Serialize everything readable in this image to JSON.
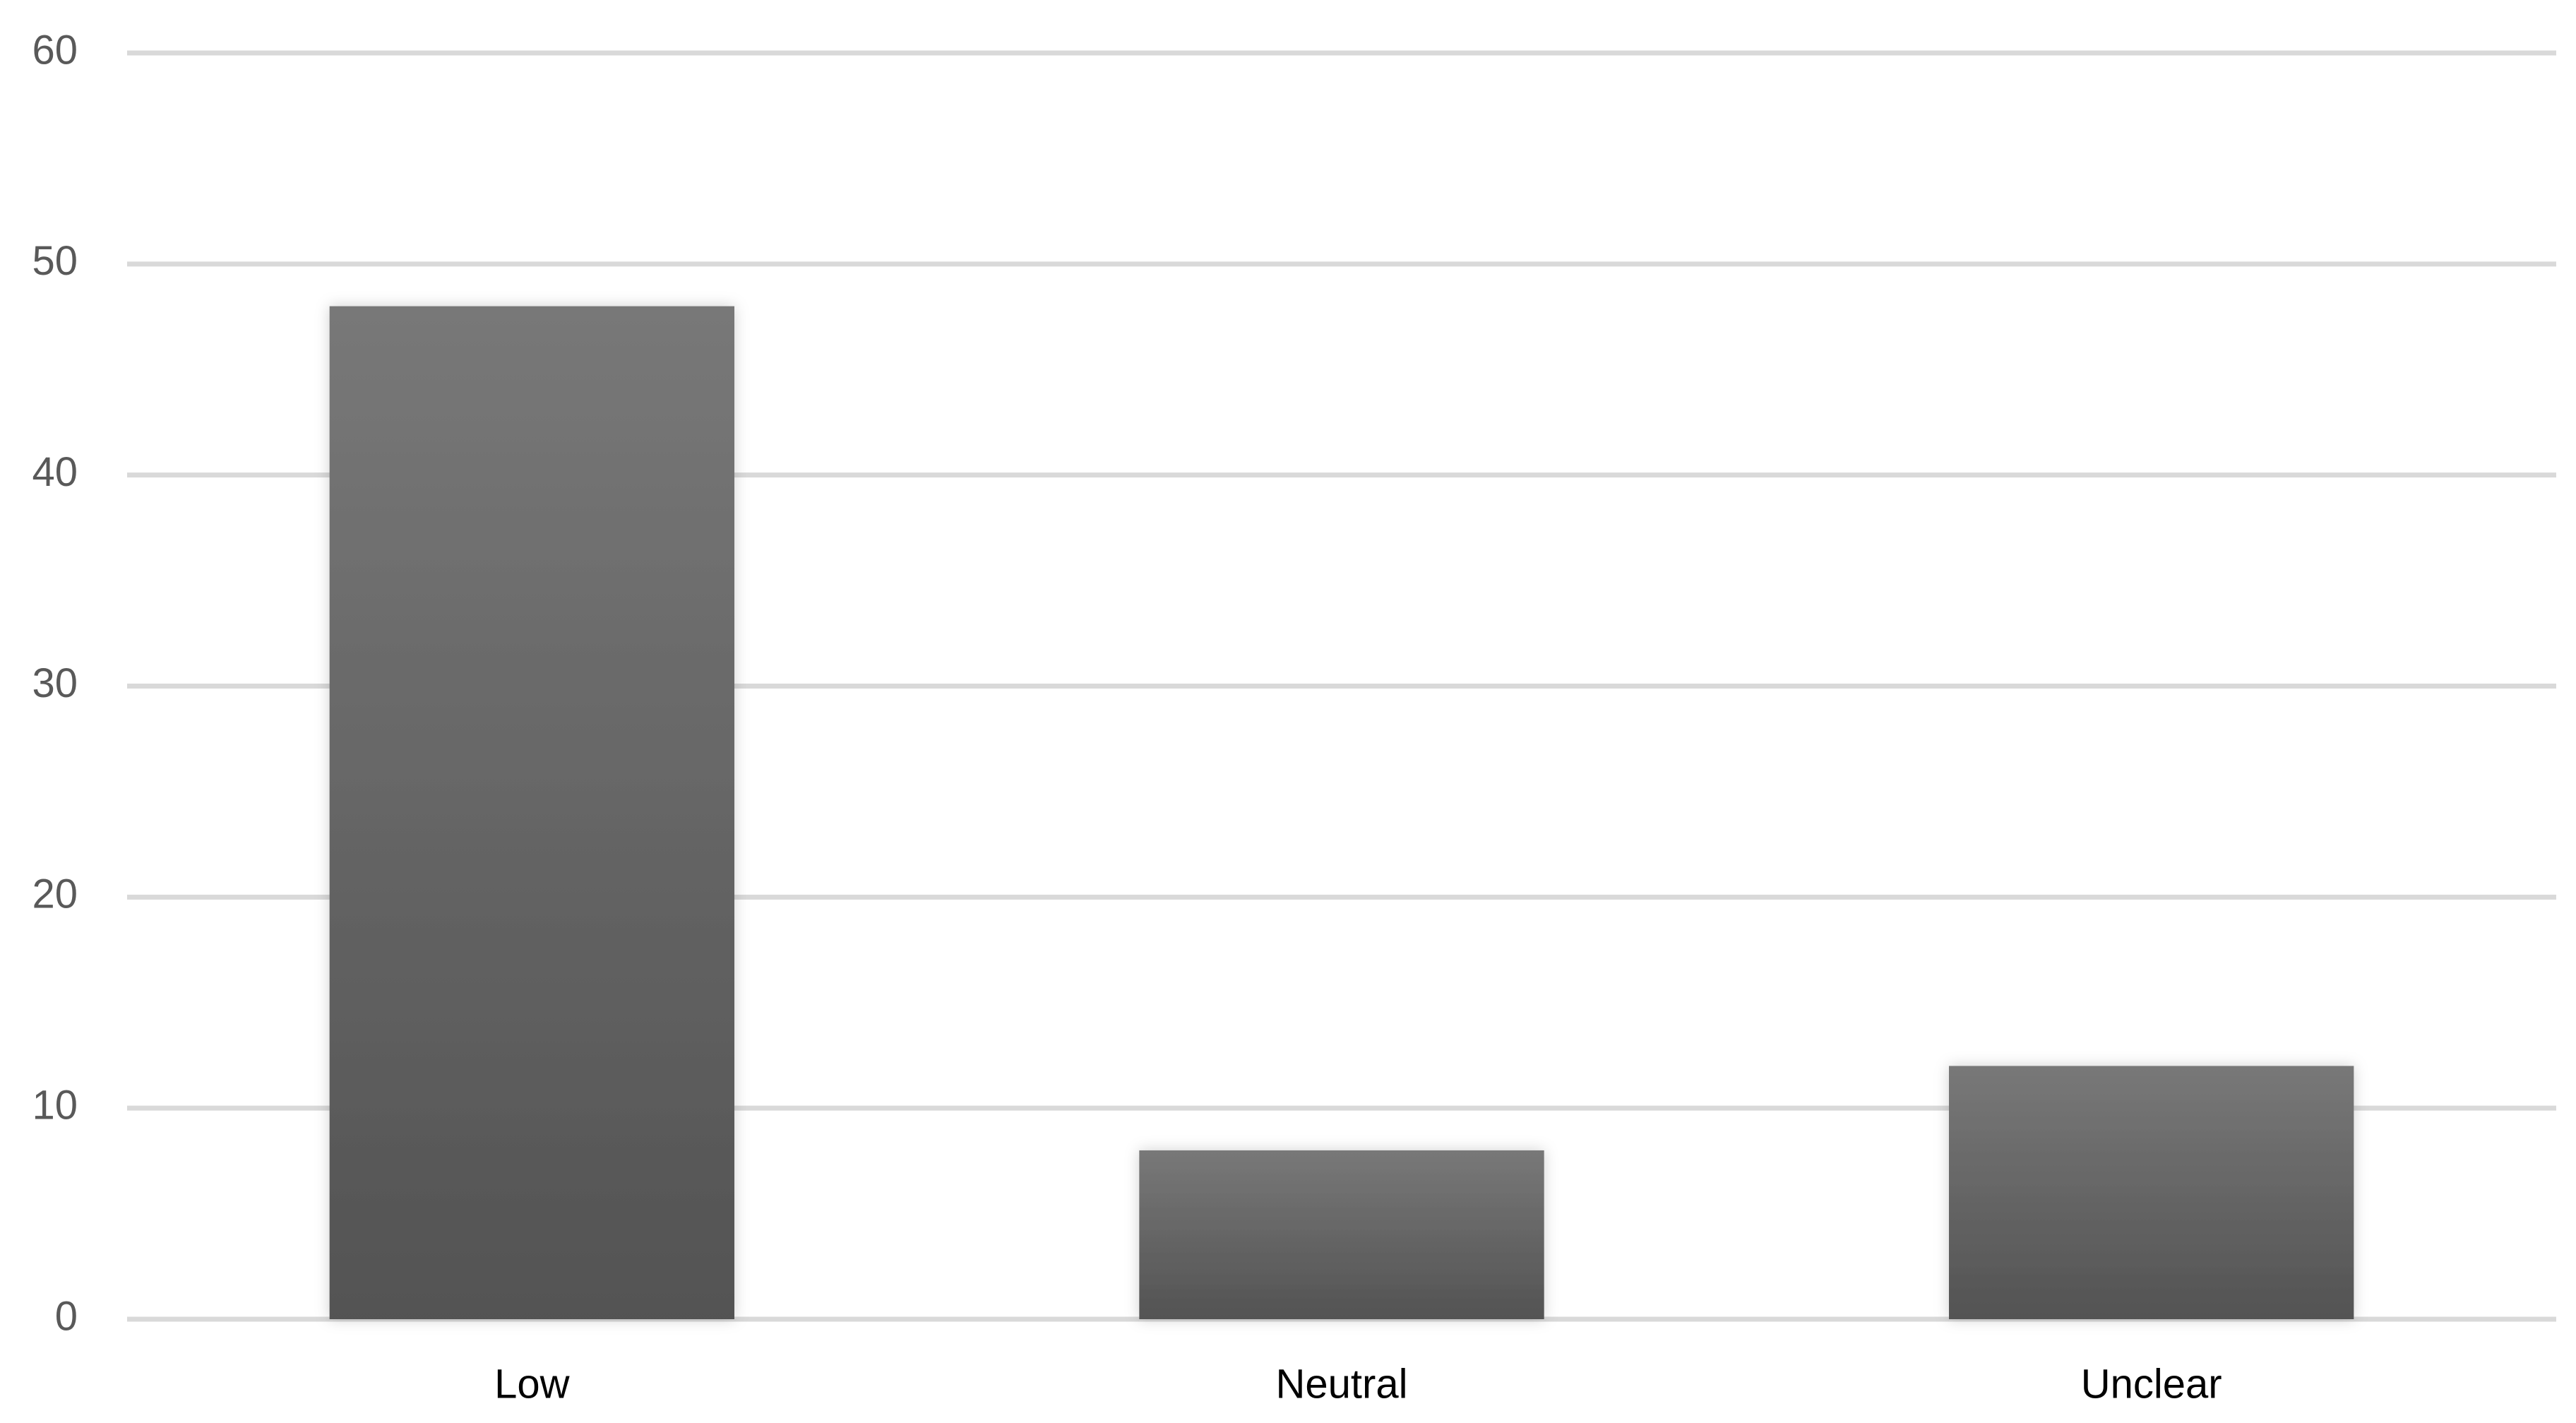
{
  "chart_data": {
    "type": "bar",
    "categories": [
      "Low",
      "Neutral",
      "Unclear"
    ],
    "values": [
      48,
      8,
      12
    ],
    "ylim": [
      0,
      60
    ],
    "yticks": [
      0,
      10,
      20,
      30,
      40,
      50,
      60
    ],
    "grid": true
  }
}
